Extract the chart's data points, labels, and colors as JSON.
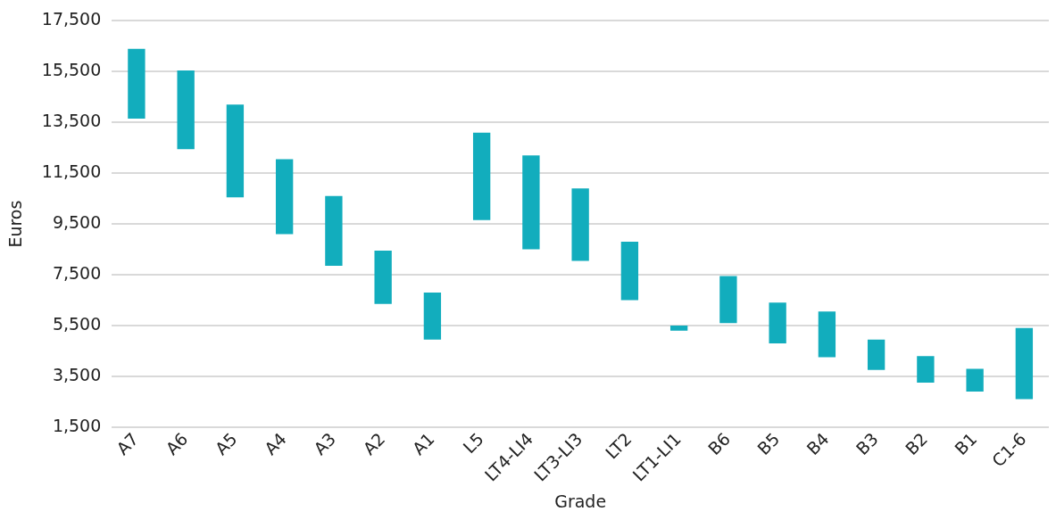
{
  "chart_data": {
    "type": "bar",
    "xlabel": "Grade",
    "ylabel": "Euros",
    "categories": [
      "A7",
      "A6",
      "A5",
      "A4",
      "A3",
      "A2",
      "A1",
      "L5",
      "LT4-LI4",
      "LT3-LI3",
      "LT2",
      "LT1-LI1",
      "B6",
      "B5",
      "B4",
      "B3",
      "B2",
      "B1",
      "C1-6"
    ],
    "base": [
      13650,
      12450,
      10550,
      9100,
      7850,
      6350,
      4950,
      9650,
      8500,
      8050,
      6500,
      5300,
      5600,
      4800,
      4250,
      3750,
      3250,
      2900,
      2600
    ],
    "values": [
      2750,
      3100,
      3650,
      2950,
      2750,
      2100,
      1850,
      3450,
      3700,
      2850,
      2300,
      200,
      1850,
      1600,
      1800,
      1200,
      1050,
      900,
      2800
    ],
    "color": "#12adbd",
    "ylim": [
      1500,
      17500
    ],
    "yticks": [
      {
        "value": 1500,
        "label": "1,500"
      },
      {
        "value": 3500,
        "label": "3,500"
      },
      {
        "value": 5500,
        "label": "5,500"
      },
      {
        "value": 7500,
        "label": "7,500"
      },
      {
        "value": 9500,
        "label": "9,500"
      },
      {
        "value": 11500,
        "label": "11,500"
      },
      {
        "value": 13500,
        "label": "13,500"
      },
      {
        "value": 15500,
        "label": "15,500"
      },
      {
        "value": 17500,
        "label": "17,500"
      }
    ],
    "grid": "y",
    "legend": false
  }
}
